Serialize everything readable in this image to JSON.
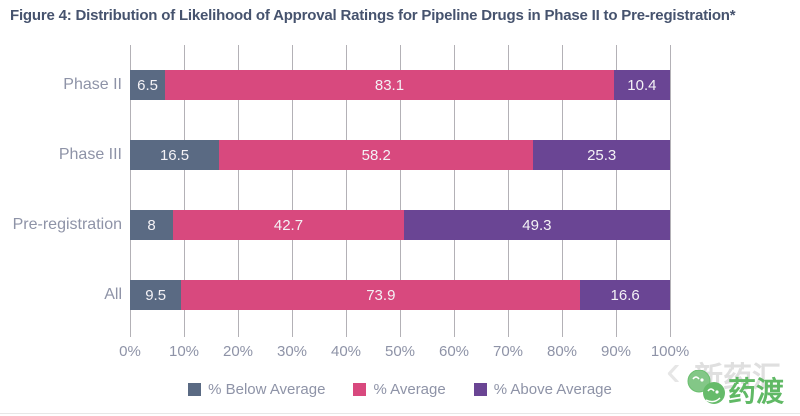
{
  "chart_data": {
    "type": "bar",
    "orientation": "horizontal",
    "stacked": true,
    "title": "Figure 4: Distribution of Likelihood of Approval Ratings for Pipeline Drugs in Phase II to Pre-registration*",
    "categories": [
      "Phase II",
      "Phase III",
      "Pre-registration",
      "All"
    ],
    "series": [
      {
        "name": "% Below Average",
        "color": "#5a6a83",
        "values": [
          6.5,
          16.5,
          8,
          9.5
        ]
      },
      {
        "name": "% Average",
        "color": "#d8497e",
        "values": [
          83.1,
          58.2,
          42.7,
          73.9
        ]
      },
      {
        "name": "% Above Average",
        "color": "#6a4594",
        "values": [
          10.4,
          25.3,
          49.3,
          16.6
        ]
      }
    ],
    "x_ticks": [
      "0%",
      "10%",
      "20%",
      "30%",
      "40%",
      "50%",
      "60%",
      "70%",
      "80%",
      "90%",
      "100%"
    ],
    "xlim": [
      0,
      100
    ],
    "grid": "vertical",
    "legend_position": "bottom",
    "value_label_color": "#f4f2f6",
    "gridline_color": "#b3b1b6",
    "text_color": "#8e93a7",
    "title_color": "#46536e"
  },
  "watermark": {
    "background_text": "新药汇",
    "edge_glyph": "‹",
    "logo_text": "药渡",
    "logo_color": "#60b965"
  }
}
